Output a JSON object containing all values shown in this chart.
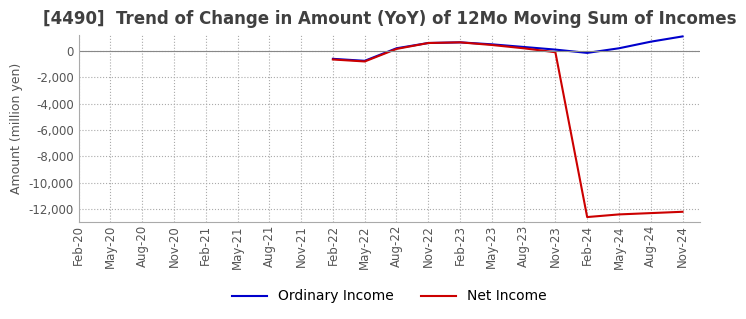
{
  "title": "[4490]  Trend of Change in Amount (YoY) of 12Mo Moving Sum of Incomes",
  "ylabel": "Amount (million yen)",
  "ylim": [
    -13000,
    1200
  ],
  "yticks": [
    0,
    -2000,
    -4000,
    -6000,
    -8000,
    -10000,
    -12000
  ],
  "background_color": "#ffffff",
  "grid_color": "#aaaaaa",
  "x_labels": [
    "Feb-20",
    "May-20",
    "Aug-20",
    "Nov-20",
    "Feb-21",
    "May-21",
    "Aug-21",
    "Nov-21",
    "Feb-22",
    "May-22",
    "Aug-22",
    "Nov-22",
    "Feb-23",
    "May-23",
    "Aug-23",
    "Nov-23",
    "Feb-24",
    "May-24",
    "Aug-24",
    "Nov-24"
  ],
  "ordinary_income": [
    null,
    null,
    null,
    null,
    null,
    null,
    null,
    null,
    -600,
    -750,
    200,
    600,
    650,
    500,
    300,
    100,
    -150,
    200,
    700,
    1100
  ],
  "net_income": [
    null,
    null,
    null,
    null,
    null,
    null,
    null,
    null,
    -650,
    -800,
    150,
    600,
    650,
    450,
    200,
    -100,
    -12600,
    -12400,
    -12300,
    -12200
  ],
  "ordinary_color": "#0000cc",
  "net_color": "#cc0000",
  "title_color": "#404040",
  "title_fontsize": 12,
  "legend_fontsize": 10,
  "tick_fontsize": 8.5,
  "axis_label_fontsize": 9
}
